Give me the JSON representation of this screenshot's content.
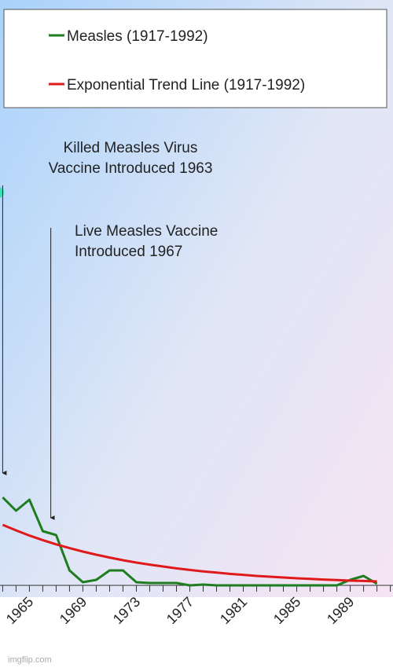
{
  "chart_data": {
    "type": "line",
    "x": [
      1963,
      1964,
      1965,
      1966,
      1967,
      1968,
      1969,
      1970,
      1971,
      1972,
      1973,
      1974,
      1975,
      1976,
      1977,
      1978,
      1979,
      1980,
      1981,
      1982,
      1983,
      1984,
      1985,
      1986,
      1987,
      1988,
      1989,
      1990,
      1991
    ],
    "series": [
      {
        "name": "Measles (1917-1992)",
        "color": "#1e7d1e",
        "values": [
          56,
          47.5,
          54.5,
          34.5,
          32,
          9.5,
          2,
          3.5,
          9.5,
          9.5,
          2,
          1.5,
          1.5,
          1.5,
          0,
          0.5,
          0,
          0,
          0,
          0,
          0,
          0,
          0,
          0,
          0,
          0,
          3.5,
          6,
          1
        ]
      },
      {
        "name": "Exponential Trend Line (1917-1992)",
        "color": "#e01a1a",
        "values": [
          38.5,
          35,
          31.7,
          28.8,
          26.1,
          23.7,
          21.5,
          19.5,
          17.7,
          16,
          14.5,
          13.2,
          12,
          10.8,
          9.8,
          8.9,
          8.1,
          7.3,
          6.7,
          6,
          5.5,
          5,
          4.5,
          4.1,
          3.7,
          3.4,
          3,
          2.8,
          2.5
        ]
      }
    ],
    "xlim": [
      1962.8,
      1992.2
    ],
    "ylim": [
      0,
      100
    ],
    "xticks": [
      1965,
      1969,
      1973,
      1977,
      1981,
      1985,
      1989
    ],
    "minor_xticks": [
      1963,
      1964,
      1965,
      1966,
      1967,
      1968,
      1969,
      1970,
      1971,
      1972,
      1973,
      1974,
      1975,
      1976,
      1977,
      1978,
      1979,
      1980,
      1981,
      1982,
      1983,
      1984,
      1985,
      1986,
      1987,
      1988,
      1989,
      1990,
      1991,
      1992
    ],
    "annotations": [
      {
        "lines": [
          "Killed Measles Virus",
          "Vaccine Introduced 1963"
        ],
        "x": 1963
      },
      {
        "lines": [
          "Live Measles Vaccine",
          "Introduced 1967"
        ],
        "x": 1966.6
      }
    ]
  },
  "watermark": "imgflip.com"
}
